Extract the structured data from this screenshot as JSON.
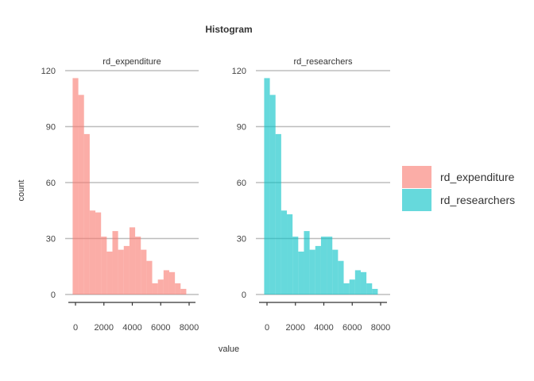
{
  "chart_data": {
    "type": "bar",
    "title": "Histogram",
    "xlabel": "value",
    "ylabel": "count",
    "ylim": [
      0,
      120
    ],
    "xlim": [
      0,
      8000
    ],
    "y_ticks": [
      0,
      30,
      60,
      90,
      120
    ],
    "x_ticks": [
      0,
      2000,
      4000,
      6000,
      8000
    ],
    "grid": "horizontal major lines",
    "legend_position": "right",
    "bin_width": 400,
    "bin_centers": [
      0,
      400,
      800,
      1200,
      1600,
      2000,
      2400,
      2800,
      3200,
      3600,
      4000,
      4400,
      4800,
      5200,
      5600,
      6000,
      6400,
      6800,
      7200,
      7600,
      8000
    ],
    "panels": [
      {
        "label": "rd_expenditure",
        "color": "#F8766D",
        "values": [
          116,
          107,
          86,
          45,
          44,
          31,
          23,
          34,
          24,
          26,
          36,
          31,
          24,
          18,
          6,
          8,
          13,
          12,
          6,
          3,
          0
        ]
      },
      {
        "label": "rd_researchers",
        "color": "#00BFC4",
        "values": [
          116,
          107,
          86,
          45,
          43,
          31,
          23,
          34,
          24,
          26,
          31,
          31,
          24,
          18,
          6,
          8,
          13,
          12,
          6,
          3,
          0
        ]
      }
    ],
    "legend": [
      {
        "label": "rd_expenditure",
        "color": "#F8766D"
      },
      {
        "label": "rd_researchers",
        "color": "#00BFC4"
      }
    ]
  }
}
